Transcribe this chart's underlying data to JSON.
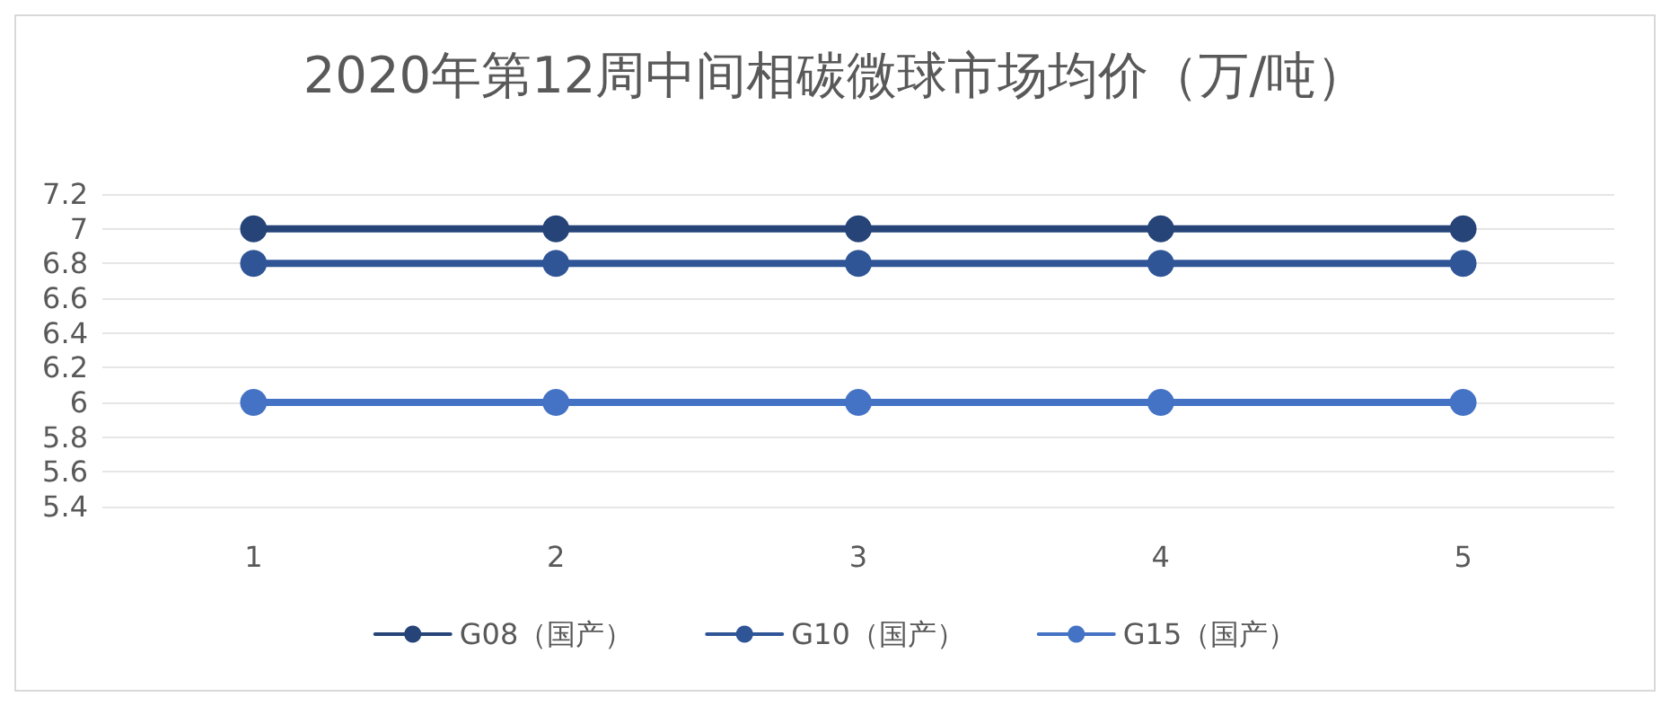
{
  "chart_data": {
    "type": "line",
    "title": "2020年第12周中间相碳微球市场均价（万/吨）",
    "categories": [
      "1",
      "2",
      "3",
      "4",
      "5"
    ],
    "series": [
      {
        "name": "G08（国产）",
        "color": "#264478",
        "values": [
          7,
          7,
          7,
          7,
          7
        ]
      },
      {
        "name": "G10（国产）",
        "color": "#2f5597",
        "values": [
          6.8,
          6.8,
          6.8,
          6.8,
          6.8
        ]
      },
      {
        "name": "G15（国产）",
        "color": "#4472c4",
        "values": [
          6,
          6,
          6,
          6,
          6
        ]
      }
    ],
    "ylim": [
      5.4,
      7.2
    ],
    "yticks": [
      5.4,
      5.6,
      5.8,
      6,
      6.2,
      6.4,
      6.6,
      6.8,
      7,
      7.2
    ],
    "grid": "y",
    "legend": "bottom",
    "marker": "circle",
    "line_style": "solid"
  }
}
